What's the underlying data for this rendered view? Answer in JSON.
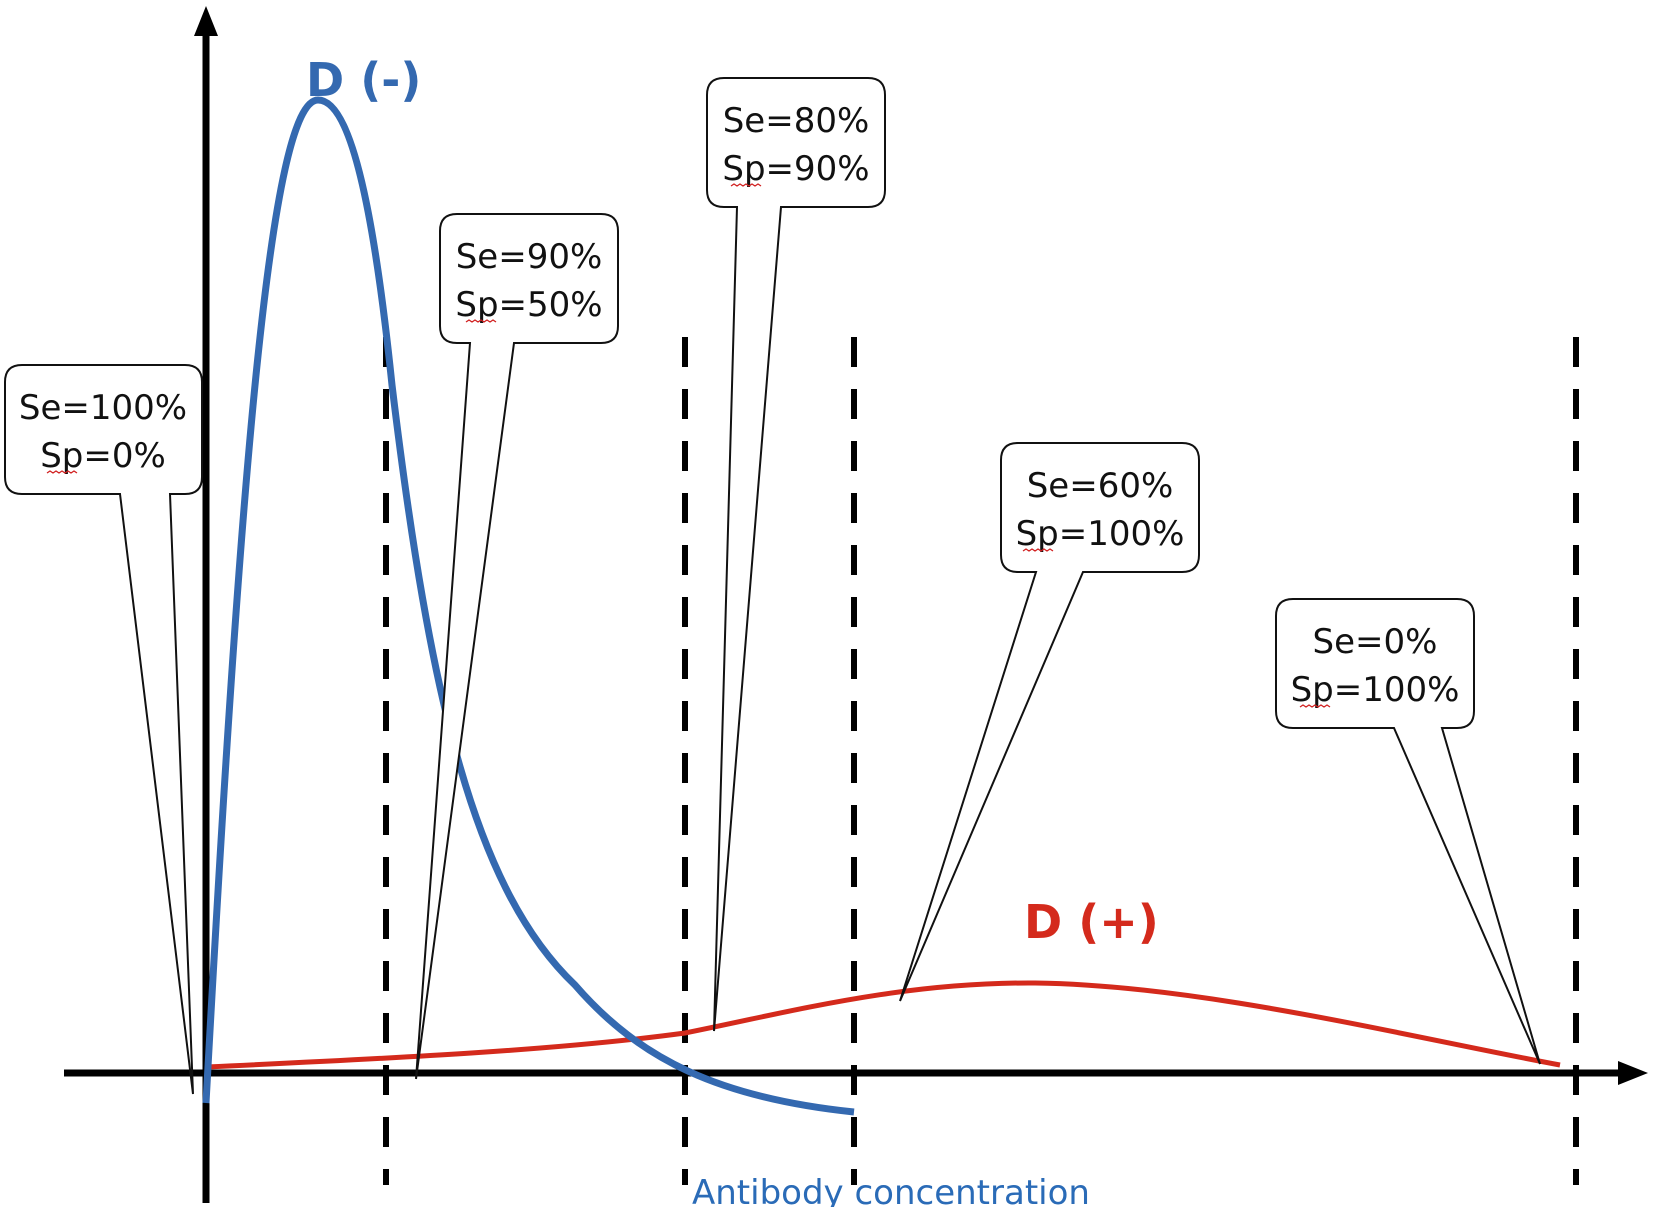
{
  "colors": {
    "negative_curve": "#3469b0",
    "positive_curve": "#d42a1c",
    "axis": "#000000",
    "cutoff_lines": "#000000",
    "axis_title": "#2a6bb7"
  },
  "curves": {
    "negative_label": "D (-)",
    "positive_label": "D (+)"
  },
  "x_axis": {
    "title": "Antibody concentration"
  },
  "callouts": [
    {
      "se": "Se=100%",
      "sp": "Sp=0%"
    },
    {
      "se": "Se=90%",
      "sp": "Sp=50%"
    },
    {
      "se": "Se=80%",
      "sp": "Sp=90%"
    },
    {
      "se": "Se=60%",
      "sp": "Sp=100%"
    },
    {
      "se": "Se=0%",
      "sp": "Sp=100%"
    }
  ]
}
